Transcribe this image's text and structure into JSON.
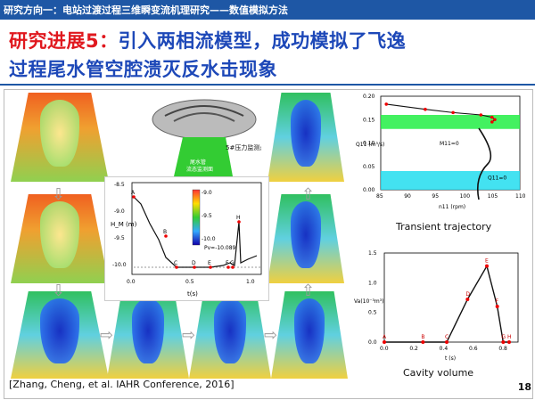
{
  "header": {
    "breadcrumb": "研究方向一：电站过渡过程三维瞬变流机理研究——数值模拟方法"
  },
  "title": {
    "prefix": "研究进展5：",
    "line1_rest": "引入两相流模型，成功模拟了飞逸",
    "line2": "过程尾水管空腔溃灭反水击现象"
  },
  "model_labels": {
    "monitor": "5#压力监测点",
    "tail": "尾水管",
    "tail2": "流态监测面"
  },
  "center_chart": {
    "ylabel": "H_M (m)",
    "xlabel": "t(s)",
    "pv": "Pv=-10.089",
    "colorbar": [
      "-9.0",
      "-9.5",
      "-10.0"
    ],
    "yticks": [
      "-8.5",
      "-9.0",
      "-9.5",
      "-10.0"
    ],
    "xticks": [
      "0.0",
      "0.5",
      "1.0"
    ],
    "points": [
      "A",
      "B",
      "C",
      "D",
      "E",
      "F",
      "G",
      "H"
    ]
  },
  "chart_data": [
    {
      "type": "line",
      "title": "Transient trajectory",
      "xlabel": "n11 (rpm)",
      "ylabel": "Q11 (m³/s)",
      "xlim": [
        85,
        110
      ],
      "ylim": [
        0,
        0.2
      ],
      "xticks": [
        "85",
        "90",
        "95",
        "100",
        "105",
        "110"
      ],
      "yticks": [
        "0.00",
        "0.05",
        "0.10",
        "0.15",
        "0.20"
      ],
      "annotations": [
        "M11=0",
        "Q11=0"
      ],
      "series": [
        {
          "values": [
            [
              86,
              0.183
            ],
            [
              93,
              0.172
            ],
            [
              98,
              0.165
            ],
            [
              103,
              0.16
            ],
            [
              105,
              0.155
            ],
            [
              105.5,
              0.15
            ],
            [
              105,
              0.145
            ]
          ]
        }
      ]
    },
    {
      "type": "line",
      "title": "Cavity volume",
      "xlabel": "t (s)",
      "ylabel": "Va(10⁻³m³)",
      "xlim": [
        0,
        0.9
      ],
      "ylim": [
        0,
        1.5
      ],
      "xticks": [
        "0.0",
        "0.2",
        "0.4",
        "0.6",
        "0.8"
      ],
      "yticks": [
        "0.0",
        "0.5",
        "1.0",
        "1.5"
      ],
      "points": [
        {
          "label": "A",
          "x": 0.0,
          "y": 0.0
        },
        {
          "label": "B",
          "x": 0.26,
          "y": 0.0
        },
        {
          "label": "C",
          "x": 0.42,
          "y": 0.0
        },
        {
          "label": "D",
          "x": 0.56,
          "y": 0.72
        },
        {
          "label": "E",
          "x": 0.69,
          "y": 1.28
        },
        {
          "label": "F",
          "x": 0.76,
          "y": 0.6
        },
        {
          "label": "G",
          "x": 0.8,
          "y": 0.0
        },
        {
          "label": "H",
          "x": 0.84,
          "y": 0.0
        }
      ]
    }
  ],
  "captions": {
    "right_top": "Transient trajectory",
    "right_bottom": "Cavity volume"
  },
  "citation": "[Zhang, Cheng, et al. IAHR Conference, 2016]",
  "page_number": "18"
}
